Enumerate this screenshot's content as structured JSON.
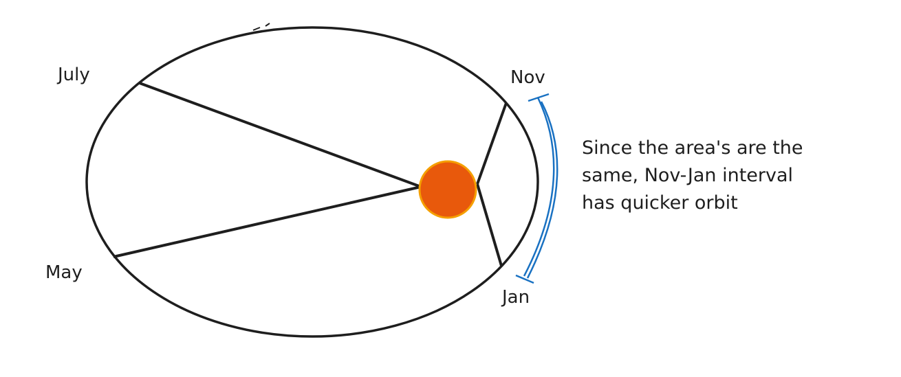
{
  "labels": {
    "july": "July",
    "nov": "Nov",
    "may": "May",
    "jan": "Jan"
  },
  "note": {
    "lines": [
      "Since the area's are the",
      "same, Nov-Jan interval",
      "has quicker orbit"
    ]
  },
  "colors": {
    "ink": "#1e1e1e",
    "sun_fill": "#e8590c",
    "sun_stroke": "#f59f00",
    "bracket": "#1971c2"
  }
}
